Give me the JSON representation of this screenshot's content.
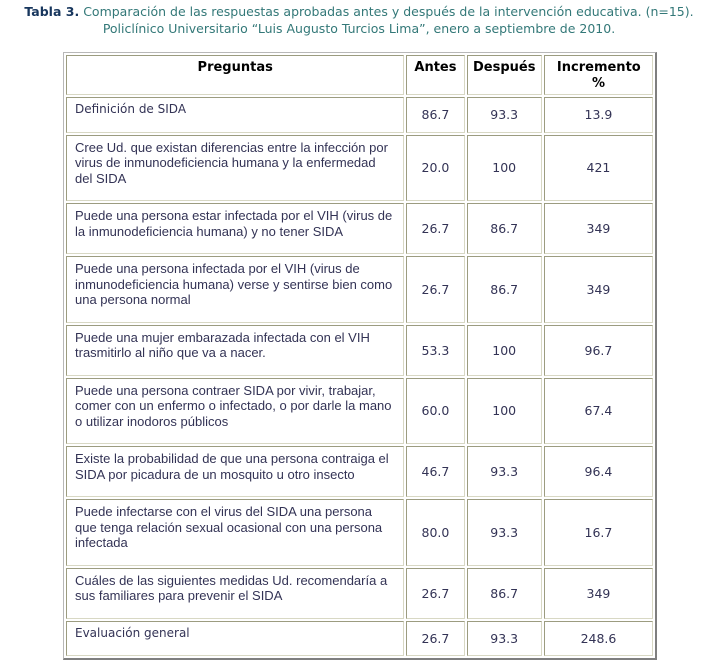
{
  "title": {
    "label": "Tabla 3.",
    "line1": "Comparación de las respuestas aprobadas antes y después de la intervención educativa. (n=15).",
    "line2": "Policlínico Universitario “Luis Augusto Turcios Lima”, enero a septiembre de 2010."
  },
  "colors": {
    "title_label": "#17365D",
    "title_text": "#337878",
    "body_text": "#333355",
    "header_text": "#000000",
    "cell_border_dark": "#9c9c80",
    "cell_border_light": "#d8d8c4"
  },
  "table": {
    "headers": [
      "Preguntas",
      "Antes",
      "Después",
      "Incremento %"
    ],
    "rows": [
      {
        "pregunta": "Definición de SIDA",
        "antes": "86.7",
        "despues": "93.3",
        "incremento": "13.9"
      },
      {
        "pregunta": "Cree Ud. que existan diferencias entre la infección por virus de inmunodeficiencia humana y la enfermedad del SIDA",
        "antes": "20.0",
        "despues": "100",
        "incremento": "421"
      },
      {
        "pregunta": "Puede una persona estar infectada por el VIH (virus de la inmunodeficiencia humana) y no tener SIDA",
        "antes": "26.7",
        "despues": "86.7",
        "incremento": "349"
      },
      {
        "pregunta": "Puede una persona infectada por el VIH (virus de inmunodeficiencia humana) verse y sentirse bien como una persona normal",
        "antes": "26.7",
        "despues": "86.7",
        "incremento": "349"
      },
      {
        "pregunta": "Puede una mujer embarazada infectada con el VIH trasmitirlo al niño que va a nacer.",
        "antes": "53.3",
        "despues": "100",
        "incremento": "96.7"
      },
      {
        "pregunta": "Puede una persona contraer SIDA por vivir, trabajar, comer con un enfermo o infectado, o por darle la mano o utilizar inodoros públicos",
        "antes": "60.0",
        "despues": "100",
        "incremento": "67.4"
      },
      {
        "pregunta": "Existe  la probabilidad de que una persona contraiga el SIDA por picadura de un mosquito u otro insecto",
        "antes": "46.7",
        "despues": "93.3",
        "incremento": "96.4"
      },
      {
        "pregunta": "Puede infectarse con el virus del SIDA una persona que tenga relación sexual ocasional con una persona infectada",
        "antes": "80.0",
        "despues": "93.3",
        "incremento": "16.7"
      },
      {
        "pregunta": "Cuáles de las siguientes medidas Ud. recomendaría a sus familiares para prevenir el SIDA",
        "antes": "26.7",
        "despues": "86.7",
        "incremento": "349"
      },
      {
        "pregunta": "Evaluación  general",
        "antes": "26.7",
        "despues": "93.3",
        "incremento": "248.6"
      }
    ]
  }
}
